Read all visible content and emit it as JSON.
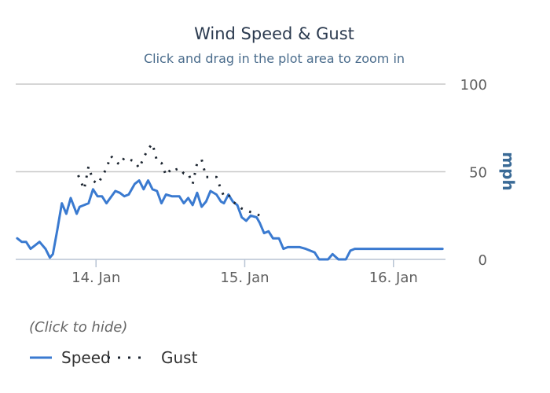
{
  "chart_data": {
    "type": "line",
    "title": "Wind Speed & Gust",
    "subtitle": "Click and drag in the plot area to zoom in",
    "ylabel": "mph",
    "xlabel": "",
    "ylim": [
      0,
      100
    ],
    "y_ticks": [
      0,
      50,
      100
    ],
    "x_ticks": [
      {
        "label": "14. Jan",
        "t": 1.0
      },
      {
        "label": "15. Jan",
        "t": 2.0
      },
      {
        "label": "16. Jan",
        "t": 3.0
      }
    ],
    "xlim_days": [
      0.46,
      3.35
    ],
    "grid": true,
    "legend": {
      "title": "(Click to hide)",
      "position": "bottom-left"
    },
    "series": [
      {
        "name": "Speed",
        "color": "#3a7ad0",
        "style": "solid",
        "x": [
          0.47,
          0.5,
          0.53,
          0.56,
          0.59,
          0.62,
          0.66,
          0.69,
          0.71,
          0.74,
          0.77,
          0.8,
          0.83,
          0.87,
          0.89,
          0.92,
          0.95,
          0.98,
          1.01,
          1.04,
          1.07,
          1.13,
          1.16,
          1.19,
          1.22,
          1.26,
          1.29,
          1.32,
          1.35,
          1.38,
          1.41,
          1.44,
          1.47,
          1.51,
          1.53,
          1.56,
          1.59,
          1.62,
          1.65,
          1.68,
          1.71,
          1.74,
          1.77,
          1.81,
          1.84,
          1.86,
          1.89,
          1.92,
          1.95,
          1.98,
          2.01,
          2.04,
          2.08,
          2.1,
          2.13,
          2.16,
          2.19,
          2.23,
          2.26,
          2.29,
          2.32,
          2.35,
          2.37,
          2.41,
          2.44,
          2.47,
          2.5,
          2.53,
          2.56,
          2.59,
          2.63,
          2.65,
          2.68,
          2.71,
          2.74,
          2.77,
          2.8,
          2.83,
          2.86,
          2.9,
          2.93,
          2.96,
          2.98,
          3.01,
          3.04,
          3.07,
          3.1,
          3.13,
          3.16,
          3.19,
          3.22,
          3.25,
          3.28,
          3.31,
          3.33
        ],
        "values": [
          12,
          10,
          10,
          6,
          8,
          10,
          6,
          1,
          3,
          17,
          32,
          26,
          35,
          26,
          30,
          31,
          32,
          40,
          36,
          36,
          32,
          39,
          38,
          36,
          37,
          43,
          45,
          40,
          45,
          40,
          39,
          32,
          37,
          36,
          36,
          36,
          32,
          35,
          31,
          38,
          30,
          33,
          39,
          37,
          33,
          32,
          37,
          33,
          31,
          24,
          22,
          25,
          24,
          21,
          15,
          16,
          12,
          12,
          6,
          7,
          7,
          7,
          7,
          6,
          5,
          4,
          0,
          0,
          0,
          3,
          0,
          0,
          0,
          5,
          6,
          6,
          6,
          6,
          6,
          6,
          6,
          6,
          6,
          6,
          6,
          6,
          6,
          6,
          6,
          6,
          6,
          6,
          6,
          6,
          6
        ]
      },
      {
        "name": "Gust",
        "color": "#1c2530",
        "style": "dotted",
        "x": [
          0.88,
          0.92,
          0.95,
          0.98,
          1.01,
          1.04,
          1.07,
          1.1,
          1.13,
          1.16,
          1.19,
          1.22,
          1.26,
          1.29,
          1.32,
          1.35,
          1.38,
          1.41,
          1.44,
          1.47,
          1.51,
          1.53,
          1.56,
          1.59,
          1.62,
          1.65,
          1.68,
          1.71,
          1.74,
          1.77,
          1.81,
          1.84,
          1.86,
          1.89,
          1.92,
          1.95,
          1.98,
          2.01,
          2.04,
          2.08,
          2.1,
          2.13
        ],
        "values": [
          48,
          40,
          53,
          45,
          43,
          47,
          52,
          59,
          56,
          54,
          58,
          57,
          56,
          52,
          58,
          63,
          66,
          56,
          55,
          48,
          52,
          51,
          52,
          49,
          49,
          43,
          55,
          57,
          47,
          47,
          47,
          40,
          36,
          37,
          33,
          31,
          29,
          28,
          27,
          26,
          25,
          25
        ]
      }
    ]
  }
}
